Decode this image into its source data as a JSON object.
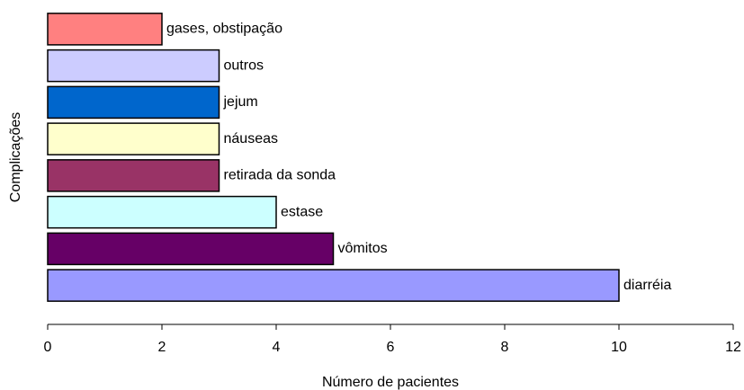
{
  "chart_data": {
    "type": "barh",
    "xlabel": "Número de pacientes",
    "ylabel": "Complicações",
    "categories": [
      "gases, obstipação",
      "outros",
      "jejum",
      "náuseas",
      "retirada da sonda",
      "estase",
      "vômitos",
      "diarréia"
    ],
    "values": [
      2,
      3,
      3,
      3,
      3,
      4,
      5,
      10
    ],
    "colors": [
      "#FF8080",
      "#CCCCFF",
      "#0066CC",
      "#FFFFCC",
      "#993366",
      "#CCFFFF",
      "#660066",
      "#9999FF"
    ],
    "xlim": [
      0,
      12
    ],
    "xticks": [
      0,
      2,
      4,
      6,
      8,
      10,
      12
    ]
  }
}
